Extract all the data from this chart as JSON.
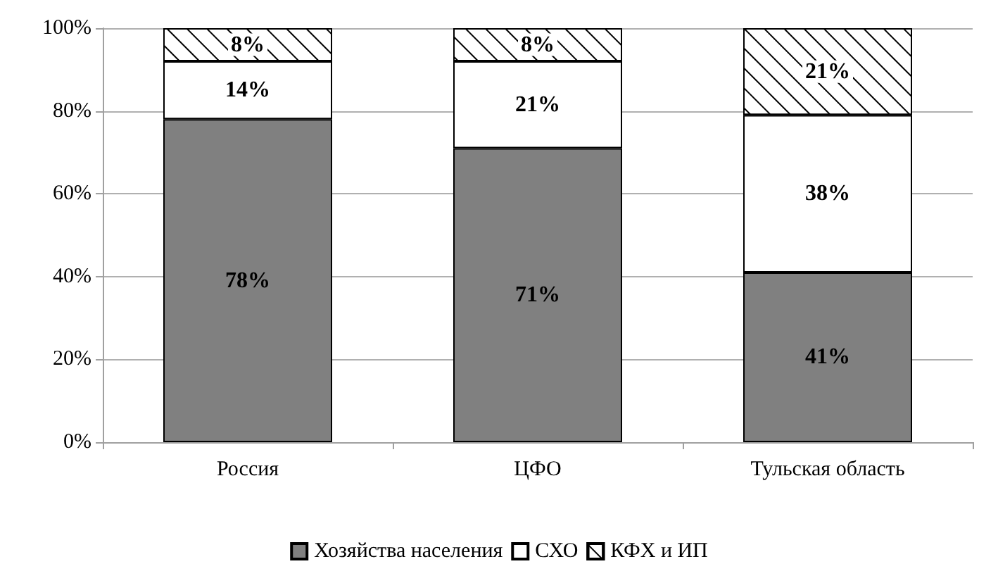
{
  "chart_data": {
    "type": "bar",
    "stacked": true,
    "categories": [
      "Россия",
      "ЦФО",
      "Тульская область"
    ],
    "series": [
      {
        "name": "Хозяйства населения",
        "color": "#808080",
        "values": [
          78,
          71,
          41
        ],
        "value_labels": [
          "78%",
          "71%",
          "41%"
        ]
      },
      {
        "name": "СХО",
        "color": "#ffffff",
        "values": [
          14,
          21,
          38
        ],
        "value_labels": [
          "14%",
          "21%",
          "38%"
        ]
      },
      {
        "name": "КФХ и ИП",
        "color": "#ffffff",
        "values": [
          8,
          8,
          21
        ],
        "value_labels": [
          "8%",
          "8%",
          "21%"
        ]
      }
    ],
    "ylim": [
      0,
      100
    ],
    "yticks": [
      {
        "value": 0,
        "label": "0%"
      },
      {
        "value": 20,
        "label": "20%"
      },
      {
        "value": 40,
        "label": "40%"
      },
      {
        "value": 60,
        "label": "60%"
      },
      {
        "value": 80,
        "label": "80%"
      },
      {
        "value": 100,
        "label": "100%"
      }
    ],
    "grid": "y",
    "legend": "bottom"
  }
}
